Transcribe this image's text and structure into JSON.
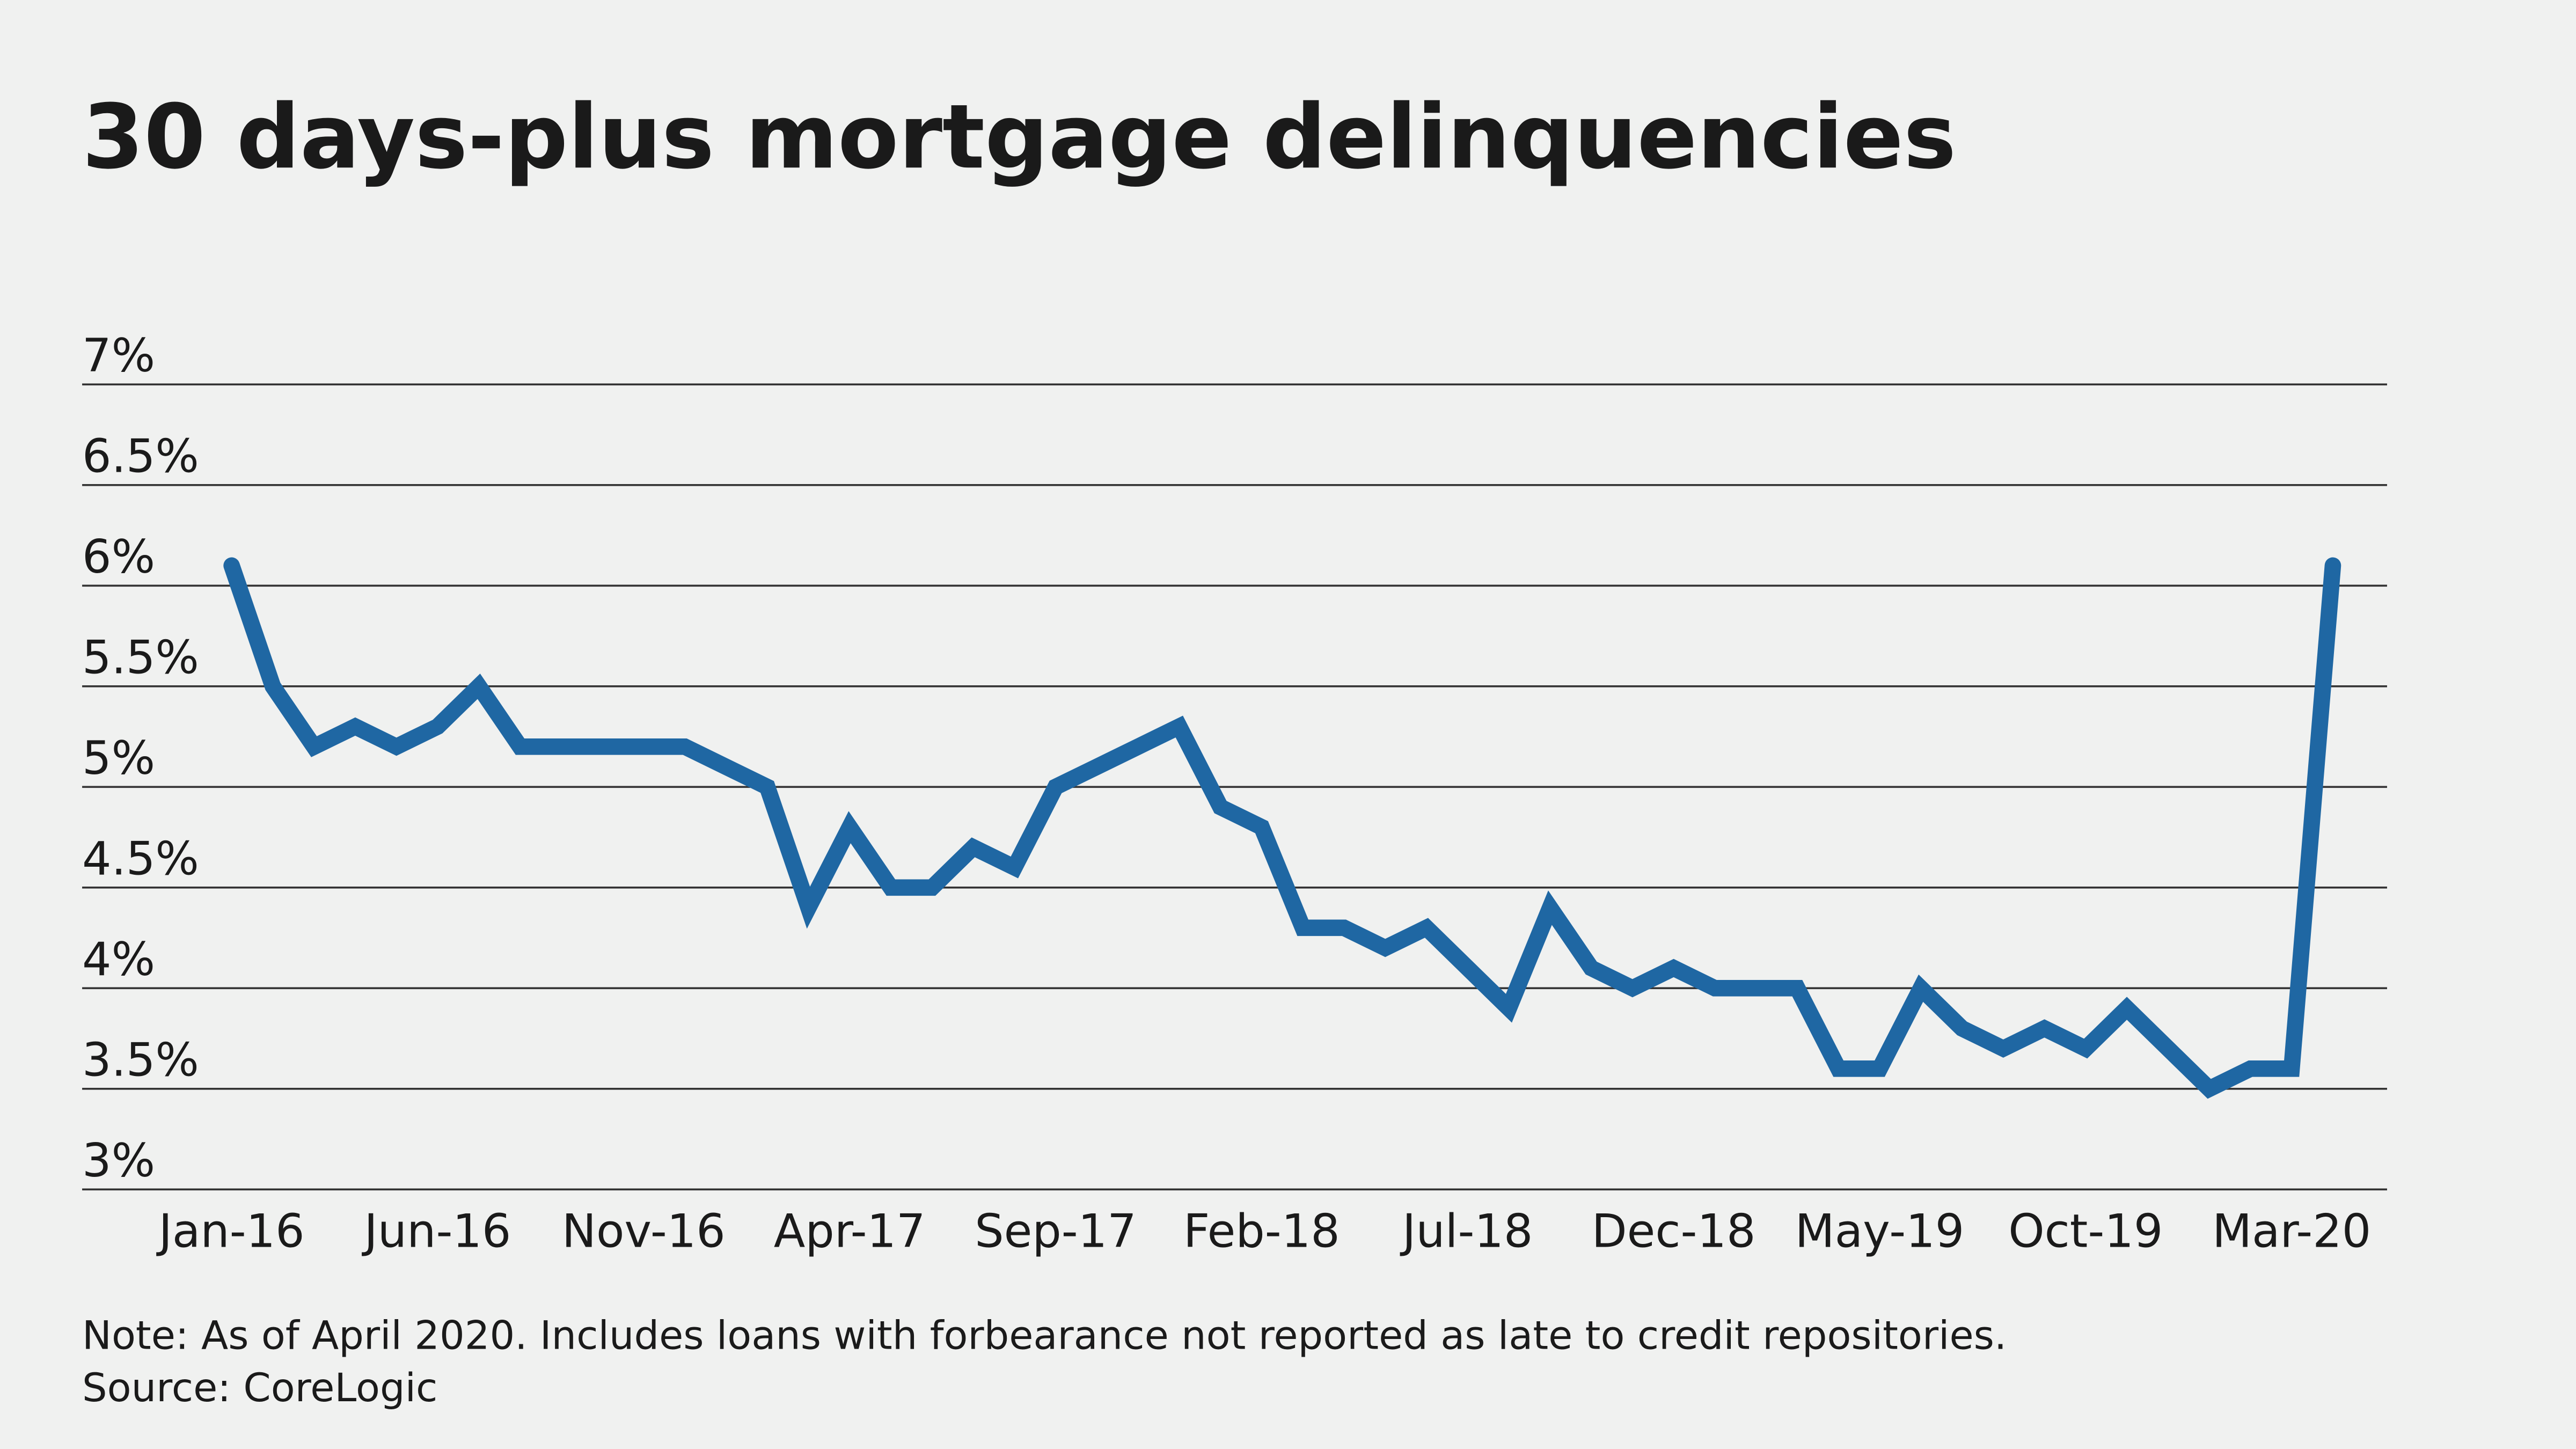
{
  "chart_data": {
    "type": "line",
    "title": "30 days-plus mortgage delinquencies",
    "note": "Note: As of April 2020. Includes loans with forbearance not reported as late to credit repositories.",
    "source": "Source: CoreLogic",
    "categories": [
      "Jan-16",
      null,
      null,
      null,
      null,
      "Jun-16",
      null,
      null,
      null,
      null,
      "Nov-16",
      null,
      null,
      null,
      null,
      "Apr-17",
      null,
      null,
      null,
      null,
      "Sep-17",
      null,
      null,
      null,
      null,
      "Feb-18",
      null,
      null,
      null,
      null,
      "Jul-18",
      null,
      null,
      null,
      null,
      "Dec-18",
      null,
      null,
      null,
      null,
      "May-19",
      null,
      null,
      null,
      null,
      "Oct-19",
      null,
      null,
      null,
      null,
      "Mar-20",
      null
    ],
    "series": [
      {
        "color": "#1f67a3",
        "values": [
          6.1,
          5.5,
          5.2,
          5.3,
          5.2,
          5.3,
          5.5,
          5.2,
          5.2,
          5.2,
          5.2,
          5.2,
          5.1,
          5.0,
          4.4,
          4.8,
          4.5,
          4.5,
          4.7,
          4.6,
          5.0,
          5.1,
          5.2,
          5.3,
          4.9,
          4.8,
          4.3,
          4.3,
          4.2,
          4.3,
          4.1,
          3.9,
          4.4,
          4.1,
          4.0,
          4.1,
          4.0,
          4.0,
          4.0,
          3.6,
          3.6,
          4.0,
          3.8,
          3.7,
          3.8,
          3.7,
          3.9,
          3.7,
          3.5,
          3.6,
          3.6,
          6.1
        ]
      }
    ],
    "ylim": [
      3,
      7
    ],
    "yticks": [
      {
        "value": 3,
        "label": "3%"
      },
      {
        "value": 3.5,
        "label": "3.5%"
      },
      {
        "value": 4,
        "label": "4%"
      },
      {
        "value": 4.5,
        "label": "4.5%"
      },
      {
        "value": 5,
        "label": "5%"
      },
      {
        "value": 5.5,
        "label": "5.5%"
      },
      {
        "value": 6,
        "label": "6%"
      },
      {
        "value": 6.5,
        "label": "6.5%"
      },
      {
        "value": 7,
        "label": "7%"
      }
    ],
    "grid": true
  }
}
